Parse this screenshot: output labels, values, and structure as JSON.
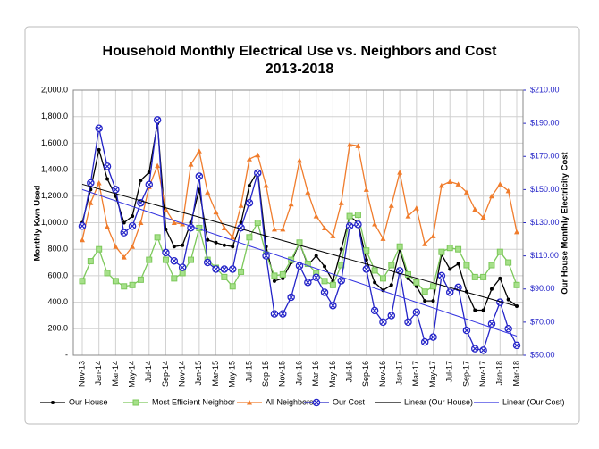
{
  "chart_data": {
    "type": "line",
    "title": "Household Monthly Electrical Use vs. Neighbors and Cost",
    "subtitle": "2013-2018",
    "y_label": "Monthly Kwn Used",
    "y2_label": "Our House Monthly Electricity Cost",
    "categories": [
      "Nov-13",
      null,
      "Jan-14",
      null,
      "Mar-14",
      null,
      "May-14",
      null,
      "Jul-14",
      null,
      "Sep-14",
      null,
      "Nov-14",
      null,
      "Jan-15",
      null,
      "Mar-15",
      null,
      "May-15",
      null,
      "Jul-15",
      null,
      "Sep-15",
      null,
      "Nov-15",
      null,
      "Jan-16",
      null,
      "Mar-16",
      null,
      "May-16",
      null,
      "Jul-16",
      null,
      "Sep-16",
      null,
      "Nov-16",
      null,
      "Jan-17",
      null,
      "Mar-17",
      null,
      "May-17",
      null,
      "Jul-17",
      null,
      "Sep-17",
      null,
      "Nov-17",
      null,
      "Jan-18",
      null,
      "Mar-18"
    ],
    "ylim": [
      0,
      2000
    ],
    "yticks": [
      {
        "value": 0,
        "label": "-"
      },
      {
        "value": 200,
        "label": "200.0"
      },
      {
        "value": 400,
        "label": "400.0"
      },
      {
        "value": 600,
        "label": "600.0"
      },
      {
        "value": 800,
        "label": "800.0"
      },
      {
        "value": 1000,
        "label": "1,000.0"
      },
      {
        "value": 1200,
        "label": "1,200.0"
      },
      {
        "value": 1400,
        "label": "1,400.0"
      },
      {
        "value": 1600,
        "label": "1,600.0"
      },
      {
        "value": 1800,
        "label": "1,800.0"
      },
      {
        "value": 2000,
        "label": "2,000.0"
      }
    ],
    "y2lim": [
      50,
      210
    ],
    "y2ticks": [
      {
        "value": 50,
        "label": "$50.00"
      },
      {
        "value": 70,
        "label": "$70.00"
      },
      {
        "value": 90,
        "label": "$90.00"
      },
      {
        "value": 110,
        "label": "$110.00"
      },
      {
        "value": 130,
        "label": "$130.00"
      },
      {
        "value": 150,
        "label": "$150.00"
      },
      {
        "value": 170,
        "label": "$170.00"
      },
      {
        "value": 190,
        "label": "$190.00"
      },
      {
        "value": 210,
        "label": "$210.00"
      }
    ],
    "grid": true,
    "legend": "bottom",
    "series": [
      {
        "name": "Our House",
        "color": "#000000",
        "marker": "dot",
        "values": [
          1000,
          1250,
          1550,
          1330,
          1200,
          1000,
          1050,
          1320,
          1380,
          1750,
          950,
          820,
          830,
          1000,
          1250,
          870,
          850,
          830,
          820,
          1000,
          1280,
          1390,
          820,
          560,
          580,
          700,
          850,
          680,
          750,
          670,
          560,
          800,
          1050,
          1000,
          720,
          550,
          490,
          530,
          800,
          580,
          520,
          410,
          410,
          760,
          650,
          690,
          480,
          340,
          340,
          500,
          580,
          420,
          370
        ]
      },
      {
        "name": "Most Efficient Neighbor",
        "color": "#7cc85a",
        "marker": "square",
        "values": [
          560,
          710,
          800,
          620,
          560,
          520,
          530,
          570,
          720,
          890,
          720,
          580,
          620,
          720,
          960,
          720,
          660,
          590,
          520,
          630,
          890,
          1000,
          760,
          600,
          610,
          720,
          850,
          690,
          620,
          560,
          530,
          680,
          1050,
          1060,
          790,
          640,
          580,
          680,
          820,
          610,
          550,
          480,
          520,
          780,
          810,
          800,
          680,
          590,
          590,
          680,
          780,
          700,
          530
        ]
      },
      {
        "name": "All Neighbors",
        "color": "#f07c2c",
        "marker": "triangle",
        "values": [
          870,
          1150,
          1300,
          970,
          820,
          740,
          820,
          1000,
          1270,
          1430,
          1100,
          1000,
          990,
          1440,
          1540,
          1230,
          1080,
          960,
          890,
          1130,
          1480,
          1510,
          1280,
          950,
          950,
          1140,
          1470,
          1230,
          1050,
          960,
          900,
          1150,
          1590,
          1580,
          1250,
          990,
          880,
          1130,
          1380,
          1050,
          1110,
          840,
          900,
          1280,
          1310,
          1290,
          1230,
          1100,
          1040,
          1200,
          1290,
          1240,
          930
        ]
      },
      {
        "name": "Our Cost",
        "color": "#2424c8",
        "marker": "circle-x",
        "axis": "y2",
        "values": [
          128,
          154,
          187,
          164,
          150,
          124,
          128,
          142,
          153,
          192,
          112,
          107,
          103,
          127,
          158,
          106,
          102,
          102,
          102,
          127,
          142,
          160,
          110,
          75,
          75,
          85,
          104,
          94,
          97,
          88,
          80,
          95,
          128,
          129,
          102,
          77,
          70,
          74,
          101,
          70,
          76,
          58,
          61,
          98,
          88,
          91,
          65,
          54,
          53,
          69,
          82,
          66,
          56
        ]
      },
      {
        "name": "Linear (Our House)",
        "color": "#000000",
        "values": [
          1290,
          1272.3,
          1254.6,
          1236.9,
          1219.2,
          1201.5,
          1183.8,
          1166.1,
          1148.4,
          1130.7,
          1113,
          1095.3,
          1077.6,
          1059.9,
          1042.2,
          1024.5,
          1006.8,
          989.1,
          971.4,
          953.7,
          936,
          918.3,
          900.6,
          882.9,
          865.2,
          847.5,
          829.8,
          812.1,
          794.4,
          776.7,
          759,
          741.3,
          723.6,
          705.9,
          688.2,
          670.5,
          652.8,
          635.1,
          617.4,
          599.7,
          582,
          564.3,
          546.6,
          528.9,
          511.2,
          493.5,
          475.8,
          458.1,
          440.4,
          422.7,
          405,
          387.3,
          369.6
        ]
      },
      {
        "name": "Linear (Our Cost)",
        "color": "#3333e0",
        "axis": "y2",
        "values": [
          150,
          148.3,
          146.6,
          144.9,
          143.2,
          141.5,
          139.8,
          138.1,
          136.4,
          134.7,
          133,
          131.3,
          129.6,
          127.9,
          126.2,
          124.5,
          122.8,
          121.1,
          119.4,
          117.7,
          116,
          114.3,
          112.6,
          110.9,
          109.2,
          107.5,
          105.8,
          104.1,
          102.4,
          100.7,
          99,
          97.3,
          95.6,
          93.9,
          92.2,
          90.5,
          88.8,
          87.1,
          85.4,
          83.7,
          82,
          80.3,
          78.6,
          76.9,
          75.2,
          73.5,
          71.8,
          70.1,
          68.4,
          66.7,
          65,
          63.3,
          61.6
        ]
      }
    ]
  }
}
